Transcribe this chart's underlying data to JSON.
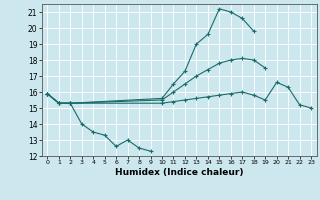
{
  "title": "",
  "xlabel": "Humidex (Indice chaleur)",
  "ylabel": "",
  "bg_color": "#cce8ee",
  "grid_color": "#ffffff",
  "line_color": "#1a6b6b",
  "xlim": [
    -0.5,
    23.5
  ],
  "ylim": [
    12,
    21.5
  ],
  "yticks": [
    12,
    13,
    14,
    15,
    16,
    17,
    18,
    19,
    20,
    21
  ],
  "xticks": [
    0,
    1,
    2,
    3,
    4,
    5,
    6,
    7,
    8,
    9,
    10,
    11,
    12,
    13,
    14,
    15,
    16,
    17,
    18,
    19,
    20,
    21,
    22,
    23
  ],
  "series": [
    {
      "x": [
        0,
        1,
        2,
        3,
        4,
        5,
        6,
        7,
        8,
        9
      ],
      "y": [
        15.9,
        15.3,
        15.3,
        14.0,
        13.5,
        13.3,
        12.6,
        13.0,
        12.5,
        12.3
      ]
    },
    {
      "x": [
        0,
        1,
        2,
        10,
        11,
        12,
        13,
        14,
        15,
        16,
        17,
        18,
        19,
        20,
        21,
        22,
        23
      ],
      "y": [
        15.9,
        15.3,
        15.3,
        15.3,
        15.4,
        15.5,
        15.6,
        15.7,
        15.8,
        15.9,
        16.0,
        15.8,
        15.5,
        16.6,
        16.3,
        15.2,
        15.0
      ]
    },
    {
      "x": [
        0,
        1,
        2,
        10,
        11,
        12,
        13,
        14,
        15,
        16,
        17,
        18,
        19
      ],
      "y": [
        15.9,
        15.3,
        15.3,
        15.5,
        16.0,
        16.5,
        17.0,
        17.4,
        17.8,
        18.0,
        18.1,
        18.0,
        17.5
      ]
    },
    {
      "x": [
        0,
        1,
        2,
        10,
        11,
        12,
        13,
        14,
        15,
        16,
        17,
        18
      ],
      "y": [
        15.9,
        15.3,
        15.3,
        15.6,
        16.5,
        17.3,
        19.0,
        19.6,
        21.2,
        21.0,
        20.6,
        19.8
      ]
    }
  ]
}
